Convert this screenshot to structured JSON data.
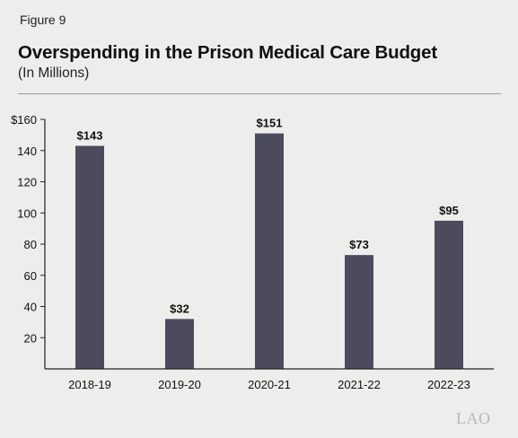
{
  "figure_label": "Figure 9",
  "title": "Overspending in the Prison Medical Care Budget",
  "subtitle": "(In Millions)",
  "logo_text": "LAO",
  "colors": {
    "bar": "#4c4b5e",
    "axis": "#222222",
    "text": "#111111",
    "background": "#ededeb"
  },
  "chart_data": {
    "type": "bar",
    "title": "Overspending in the Prison Medical Care Budget",
    "subtitle": "(In Millions)",
    "categories": [
      "2018-19",
      "2019-20",
      "2020-21",
      "2021-22",
      "2022-23"
    ],
    "values": [
      143,
      32,
      151,
      73,
      95
    ],
    "data_labels": [
      "$143",
      "$32",
      "$151",
      "$73",
      "$95"
    ],
    "ylim": [
      0,
      160
    ],
    "yticks": [
      20,
      40,
      60,
      80,
      100,
      120,
      140,
      160
    ],
    "ytick_labels": [
      "20",
      "40",
      "60",
      "80",
      "100",
      "120",
      "140",
      "$160"
    ],
    "grid": false,
    "legend": "none"
  }
}
